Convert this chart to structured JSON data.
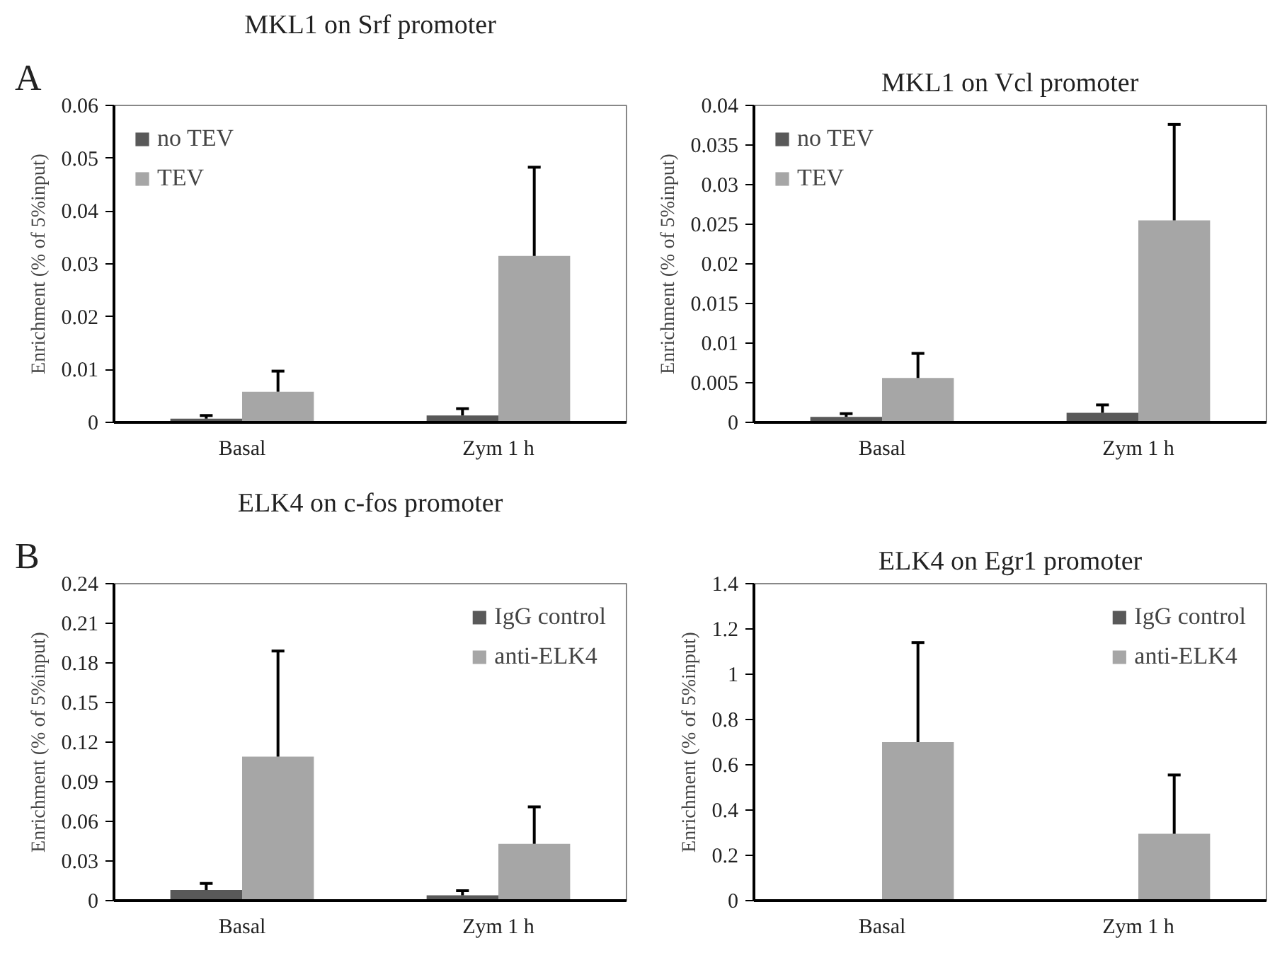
{
  "chart_data": [
    {
      "type": "bar",
      "title": "MKL1 on Srf promoter",
      "ylabel": "Enrichment (% of 5%input)",
      "annotations": [
        "A"
      ],
      "categories": [
        "Basal",
        "Zym 1 h"
      ],
      "ylim": [
        0,
        0.06
      ],
      "yticks": [
        0,
        0.01,
        0.02,
        0.03,
        0.04,
        0.05,
        0.06
      ],
      "grid": false,
      "legend": "top left",
      "series": [
        {
          "name": "no TEV",
          "color": "#595959",
          "values": [
            0.0007,
            0.0013
          ],
          "errors": [
            [
              0.0007,
              0.0013
            ],
            [
              0.0013,
              0.0026
            ]
          ]
        },
        {
          "name": "TEV",
          "color": "#a6a6a6",
          "values": [
            0.0058,
            0.0315
          ],
          "errors": [
            [
              0.0058,
              0.0097
            ],
            [
              0.0315,
              0.0483
            ]
          ]
        }
      ]
    },
    {
      "type": "bar",
      "title": "MKL1 on Vcl promoter",
      "ylabel": "Enrichment (% of 5%input)",
      "categories": [
        "Basal",
        "Zym 1 h"
      ],
      "ylim": [
        0,
        0.04
      ],
      "yticks": [
        0,
        0.005,
        0.01,
        0.015,
        0.02,
        0.025,
        0.03,
        0.035,
        0.04
      ],
      "grid": false,
      "legend": "top left",
      "series": [
        {
          "name": "no TEV",
          "color": "#595959",
          "values": [
            0.0007,
            0.0012
          ],
          "errors": [
            [
              0.0007,
              0.0011
            ],
            [
              0.0012,
              0.0022
            ]
          ]
        },
        {
          "name": "TEV",
          "color": "#a6a6a6",
          "values": [
            0.0056,
            0.0255
          ],
          "errors": [
            [
              0.0056,
              0.0087
            ],
            [
              0.0255,
              0.0376
            ]
          ]
        }
      ]
    },
    {
      "type": "bar",
      "title": "ELK4 on c-fos promoter",
      "ylabel": "Enrichment (% of 5%input)",
      "annotations": [
        "B"
      ],
      "categories": [
        "Basal",
        "Zym 1 h"
      ],
      "ylim": [
        0,
        0.24
      ],
      "yticks": [
        0,
        0.03,
        0.06,
        0.09,
        0.12,
        0.15,
        0.18,
        0.21,
        0.24
      ],
      "grid": false,
      "legend": "top right",
      "series": [
        {
          "name": "IgG control",
          "color": "#595959",
          "values": [
            0.008,
            0.004
          ],
          "errors": [
            [
              0.008,
              0.013
            ],
            [
              0.004,
              0.0075
            ]
          ]
        },
        {
          "name": "anti-ELK4",
          "color": "#a6a6a6",
          "values": [
            0.109,
            0.043
          ],
          "errors": [
            [
              0.109,
              0.189
            ],
            [
              0.043,
              0.071
            ]
          ]
        }
      ]
    },
    {
      "type": "bar",
      "title": "ELK4 on Egr1 promoter",
      "ylabel": "Enrichment (% of 5%input)",
      "categories": [
        "Basal",
        "Zym 1 h"
      ],
      "ylim": [
        0,
        1.4
      ],
      "yticks": [
        0,
        0.2,
        0.4,
        0.6,
        0.8,
        1,
        1.2,
        1.4
      ],
      "grid": false,
      "legend": "top right",
      "series": [
        {
          "name": "IgG control",
          "color": "#595959",
          "values": [
            null,
            null
          ]
        },
        {
          "name": "anti-ELK4",
          "color": "#a6a6a6",
          "values": [
            0.7,
            0.295
          ],
          "errors": [
            [
              0.7,
              1.14
            ],
            [
              0.295,
              0.555
            ]
          ]
        }
      ]
    }
  ]
}
